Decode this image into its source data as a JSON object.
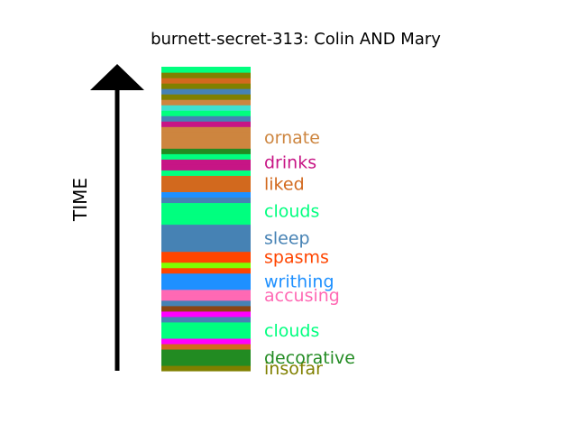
{
  "chart_data": {
    "type": "bar",
    "title": "burnett-secret-313: Colin AND Mary",
    "ylabel": "TIME",
    "arrow_color": "#000000",
    "stripes": [
      {
        "color": "#808000"
      },
      {
        "color": "#228b22"
      },
      {
        "color": "#228b22"
      },
      {
        "color": "#228b22"
      },
      {
        "color": "#d2691e"
      },
      {
        "color": "#ff00ff"
      },
      {
        "color": "#00ff7f"
      },
      {
        "color": "#00ff7f"
      },
      {
        "color": "#00ff7f"
      },
      {
        "color": "#4682b4"
      },
      {
        "color": "#ff00ff"
      },
      {
        "color": "#8b4513"
      },
      {
        "color": "#4682b4"
      },
      {
        "color": "#ff69b4"
      },
      {
        "color": "#ff69b4"
      },
      {
        "color": "#1e90ff"
      },
      {
        "color": "#1e90ff"
      },
      {
        "color": "#1e90ff"
      },
      {
        "color": "#ff4500"
      },
      {
        "color": "#7fff00"
      },
      {
        "color": "#ff4500"
      },
      {
        "color": "#ff4500"
      },
      {
        "color": "#4682b4"
      },
      {
        "color": "#4682b4"
      },
      {
        "color": "#4682b4"
      },
      {
        "color": "#4682b4"
      },
      {
        "color": "#4682b4"
      },
      {
        "color": "#00ff7f"
      },
      {
        "color": "#00ff7f"
      },
      {
        "color": "#00ff7f"
      },
      {
        "color": "#00ff7f"
      },
      {
        "color": "#4682b4"
      },
      {
        "color": "#1e90ff"
      },
      {
        "color": "#d2691e"
      },
      {
        "color": "#d2691e"
      },
      {
        "color": "#d2691e"
      },
      {
        "color": "#00ff7f"
      },
      {
        "color": "#c71585"
      },
      {
        "color": "#c71585"
      },
      {
        "color": "#00ff7f"
      },
      {
        "color": "#228b22"
      },
      {
        "color": "#cd853f"
      },
      {
        "color": "#cd853f"
      },
      {
        "color": "#cd853f"
      },
      {
        "color": "#cd853f"
      },
      {
        "color": "#c71585"
      },
      {
        "color": "#4682b4"
      },
      {
        "color": "#00ff7f"
      },
      {
        "color": "#40e0d0"
      },
      {
        "color": "#cd853f"
      },
      {
        "color": "#808000"
      },
      {
        "color": "#4682b4"
      },
      {
        "color": "#808000"
      },
      {
        "color": "#d2691e"
      },
      {
        "color": "#808000"
      },
      {
        "color": "#00ff7f"
      }
    ],
    "words": [
      {
        "text": "insofar",
        "index": 0,
        "color": "#808000"
      },
      {
        "text": "decorative",
        "index": 2,
        "color": "#228b22"
      },
      {
        "text": "clouds",
        "index": 7,
        "color": "#00ff7f"
      },
      {
        "text": "accusing",
        "index": 13.5,
        "color": "#ff69b4"
      },
      {
        "text": "writhing",
        "index": 16,
        "color": "#1e90ff"
      },
      {
        "text": "spasms",
        "index": 20.5,
        "color": "#ff4500"
      },
      {
        "text": "sleep",
        "index": 24,
        "color": "#4682b4"
      },
      {
        "text": "clouds",
        "index": 29,
        "color": "#00ff7f"
      },
      {
        "text": "liked",
        "index": 34,
        "color": "#d2691e"
      },
      {
        "text": "drinks",
        "index": 38,
        "color": "#c71585"
      },
      {
        "text": "ornate",
        "index": 42.5,
        "color": "#cd853f"
      }
    ]
  }
}
